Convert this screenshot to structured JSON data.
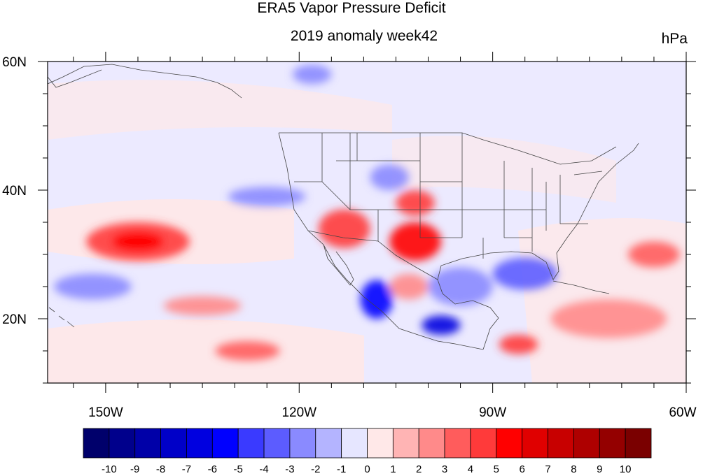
{
  "title": "ERA5 Vapor Pressure Deficit",
  "subtitle": "2019 anomaly week42",
  "units": "hPa",
  "map": {
    "projection": "cylindrical-equidistant",
    "lon_range": [
      -159,
      -60
    ],
    "lat_range": [
      10,
      60
    ],
    "lon_ticks": [
      {
        "value": -150,
        "label": "150W"
      },
      {
        "value": -120,
        "label": "120W"
      },
      {
        "value": -90,
        "label": "90W"
      },
      {
        "value": -60,
        "label": "60W"
      }
    ],
    "lat_ticks": [
      {
        "value": 20,
        "label": "20N"
      },
      {
        "value": 40,
        "label": "40N"
      },
      {
        "value": 60,
        "label": "60N"
      }
    ]
  },
  "colorbar": {
    "colors": [
      "#00006b",
      "#00008c",
      "#0000a8",
      "#0000c8",
      "#0000e0",
      "#0000ff",
      "#3a3aff",
      "#5c5cff",
      "#8a8aff",
      "#b4b4ff",
      "#e6e6ff",
      "#ffe8e8",
      "#ffb4b4",
      "#ff8a8a",
      "#ff5c5c",
      "#ff3a3a",
      "#ff0000",
      "#e00000",
      "#c80000",
      "#ae0000",
      "#940000",
      "#7a0000"
    ],
    "labels": [
      "-10",
      "-9",
      "-8",
      "-7",
      "-6",
      "-5",
      "-4",
      "-3",
      "-2",
      "-1",
      "0",
      "1",
      "2",
      "3",
      "4",
      "5",
      "6",
      "7",
      "8",
      "9",
      "10"
    ]
  },
  "anomalies": [
    {
      "lon": -145,
      "lat": 32,
      "rx": 8,
      "ry": 3,
      "value": 4
    },
    {
      "lon": -145,
      "lat": 32,
      "rx": 4,
      "ry": 1.5,
      "value": 5
    },
    {
      "lon": -113,
      "lat": 34,
      "rx": 4,
      "ry": 3,
      "value": 4
    },
    {
      "lon": -102,
      "lat": 32,
      "rx": 4,
      "ry": 3,
      "value": 5
    },
    {
      "lon": -102,
      "lat": 38,
      "rx": 3,
      "ry": 2,
      "value": 4
    },
    {
      "lon": -103,
      "lat": 25,
      "rx": 3,
      "ry": 2,
      "value": 2
    },
    {
      "lon": -108,
      "lat": 23,
      "rx": 2.5,
      "ry": 3,
      "value": -5
    },
    {
      "lon": -98,
      "lat": 19,
      "rx": 3,
      "ry": 1.5,
      "value": -6
    },
    {
      "lon": -86,
      "lat": 16,
      "rx": 3,
      "ry": 1.5,
      "value": 4
    },
    {
      "lon": -85,
      "lat": 27,
      "rx": 5,
      "ry": 2.5,
      "value": -3
    },
    {
      "lon": -95,
      "lat": 25,
      "rx": 5,
      "ry": 3,
      "value": -2
    },
    {
      "lon": -128,
      "lat": 15,
      "rx": 5,
      "ry": 1.5,
      "value": 3
    },
    {
      "lon": -135,
      "lat": 22,
      "rx": 6,
      "ry": 1.5,
      "value": 2
    },
    {
      "lon": -72,
      "lat": 20,
      "rx": 9,
      "ry": 3,
      "value": 2
    },
    {
      "lon": -65,
      "lat": 30,
      "rx": 4,
      "ry": 2,
      "value": 3
    },
    {
      "lon": -152,
      "lat": 25,
      "rx": 6,
      "ry": 2,
      "value": -2
    },
    {
      "lon": -125,
      "lat": 39,
      "rx": 6,
      "ry": 1.5,
      "value": -2
    },
    {
      "lon": -118,
      "lat": 58,
      "rx": 3,
      "ry": 1.5,
      "value": -2
    },
    {
      "lon": -106,
      "lat": 42,
      "rx": 3,
      "ry": 2,
      "value": -2
    }
  ]
}
